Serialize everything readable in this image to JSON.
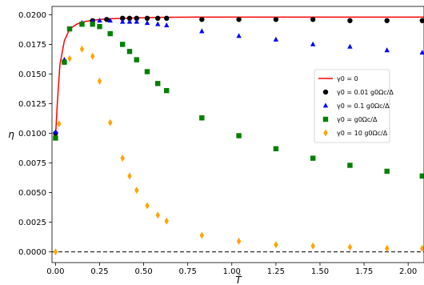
{
  "chart_data": {
    "type": "scatter",
    "title": "",
    "xlabel": "T̄",
    "ylabel": "η",
    "xlim": [
      -0.02,
      2.09
    ],
    "ylim": [
      -0.0009,
      0.0207
    ],
    "x_ticks": [
      "0.00",
      "0.25",
      "0.50",
      "0.75",
      "1.00",
      "1.25",
      "1.50",
      "1.75",
      "2.00"
    ],
    "y_ticks": [
      "0.0000",
      "0.0025",
      "0.0050",
      "0.0075",
      "0.0100",
      "0.0125",
      "0.0150",
      "0.0175",
      "0.0200"
    ],
    "grid": false,
    "legend_position": "right",
    "baseline": {
      "y": 0,
      "style": "dashed",
      "color": "#000000"
    },
    "series": [
      {
        "name": "γ0 = 0",
        "marker": "line",
        "color": "#ff0000",
        "x": [
          0.0,
          0.01,
          0.025,
          0.05,
          0.08,
          0.12,
          0.16,
          0.2,
          0.25,
          0.3,
          0.4,
          0.5,
          0.6,
          0.8,
          1.0,
          1.25,
          1.5,
          1.75,
          2.0,
          2.09
        ],
        "y": [
          0.0097,
          0.0125,
          0.0158,
          0.0178,
          0.0188,
          0.0192,
          0.0194,
          0.0195,
          0.0196,
          0.01965,
          0.0197,
          0.01975,
          0.01978,
          0.0198,
          0.0198,
          0.0198,
          0.0198,
          0.0198,
          0.0198,
          0.0198
        ]
      },
      {
        "name": "γ0 = 0.01 g0Ωc/Δ",
        "marker": "circle",
        "color": "#000000",
        "x": [
          0.0,
          0.05,
          0.21,
          0.29,
          0.38,
          0.42,
          0.46,
          0.52,
          0.58,
          0.63,
          0.83,
          1.04,
          1.25,
          1.46,
          1.67,
          1.88,
          2.08
        ],
        "y": [
          0.01,
          0.016,
          0.0195,
          0.0196,
          0.0197,
          0.0197,
          0.0197,
          0.0197,
          0.0197,
          0.0197,
          0.0196,
          0.0196,
          0.0196,
          0.0196,
          0.0195,
          0.0195,
          0.0195
        ]
      },
      {
        "name": "γ0 = 0.1 g0Ωc/Δ",
        "marker": "triangle",
        "color": "#0000ff",
        "x": [
          0.0,
          0.05,
          0.15,
          0.21,
          0.25,
          0.31,
          0.38,
          0.42,
          0.46,
          0.52,
          0.58,
          0.63,
          0.83,
          1.04,
          1.25,
          1.46,
          1.67,
          1.88,
          2.08
        ],
        "y": [
          0.0101,
          0.0162,
          0.0193,
          0.0194,
          0.0195,
          0.0195,
          0.0194,
          0.0194,
          0.0194,
          0.0193,
          0.0192,
          0.0191,
          0.0186,
          0.0182,
          0.0179,
          0.0175,
          0.0173,
          0.017,
          0.0168
        ]
      },
      {
        "name": "γ0 = g0Ωc/Δ",
        "marker": "square",
        "color": "#008000",
        "x": [
          0.0,
          0.05,
          0.08,
          0.15,
          0.21,
          0.25,
          0.31,
          0.38,
          0.42,
          0.46,
          0.52,
          0.58,
          0.63,
          0.83,
          1.04,
          1.25,
          1.46,
          1.67,
          1.88,
          2.08
        ],
        "y": [
          0.0096,
          0.016,
          0.0188,
          0.0192,
          0.0192,
          0.019,
          0.0184,
          0.0175,
          0.0169,
          0.0162,
          0.0152,
          0.0142,
          0.0136,
          0.0113,
          0.0098,
          0.0087,
          0.0079,
          0.0073,
          0.0068,
          0.0064
        ]
      },
      {
        "name": "γ0 = 10 g0Ωc/Δ",
        "marker": "diamond",
        "color": "#ffa500",
        "x": [
          0.0,
          0.02,
          0.08,
          0.15,
          0.21,
          0.25,
          0.31,
          0.38,
          0.42,
          0.46,
          0.52,
          0.58,
          0.63,
          0.83,
          1.04,
          1.25,
          1.46,
          1.67,
          1.88,
          2.08
        ],
        "y": [
          0.0,
          0.0108,
          0.0163,
          0.0171,
          0.0165,
          0.0144,
          0.0109,
          0.0079,
          0.0064,
          0.0052,
          0.0039,
          0.0031,
          0.0026,
          0.0014,
          0.0009,
          0.0006,
          0.0005,
          0.0004,
          0.0003,
          0.0003
        ]
      }
    ]
  }
}
